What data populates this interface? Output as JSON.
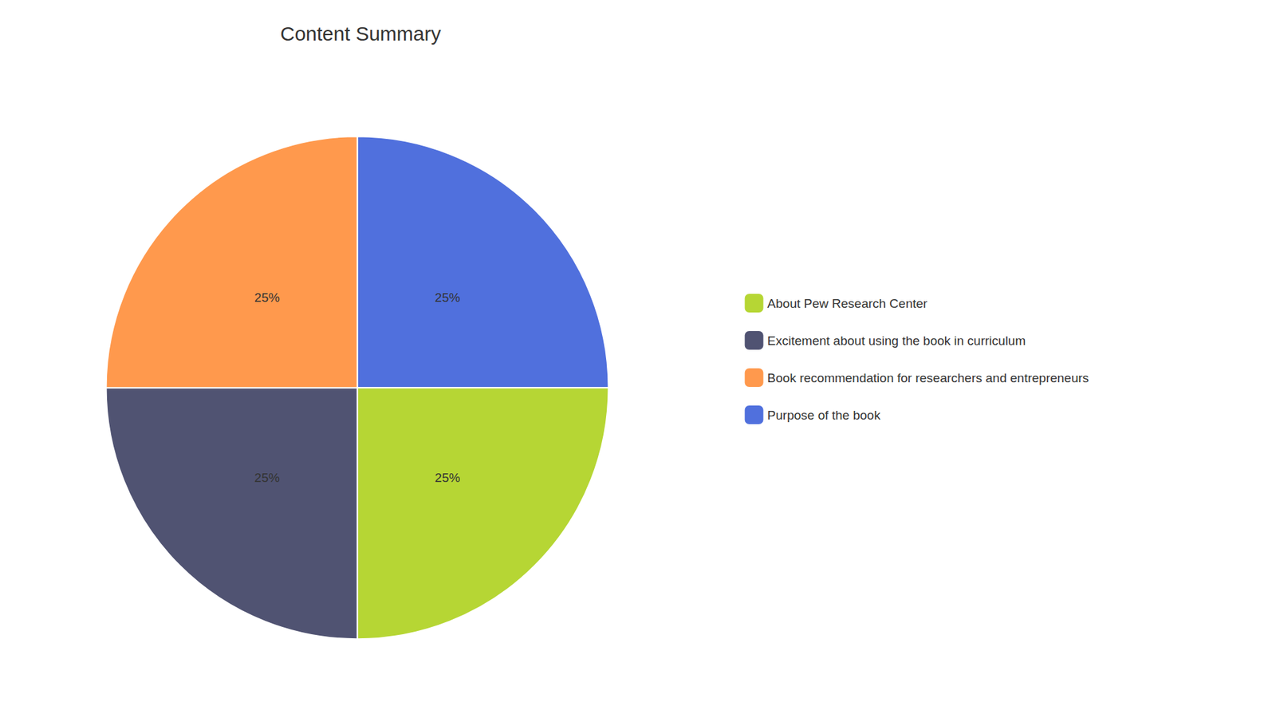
{
  "chart_data": {
    "type": "pie",
    "title": "Content Summary",
    "categories": [
      "Purpose of the book",
      "About Pew Research Center",
      "Excitement about using the book in curriculum",
      "Book recommendation for researchers and entrepreneurs"
    ],
    "values": [
      25,
      25,
      25,
      25
    ],
    "value_labels": [
      "25%",
      "25%",
      "25%",
      "25%"
    ],
    "data_labels": true,
    "legend": "right",
    "legend_entries": [
      "About Pew Research Center",
      "Excitement about using the book in curriculum",
      "Book recommendation for researchers and entrepreneurs",
      "Purpose of the book"
    ]
  }
}
